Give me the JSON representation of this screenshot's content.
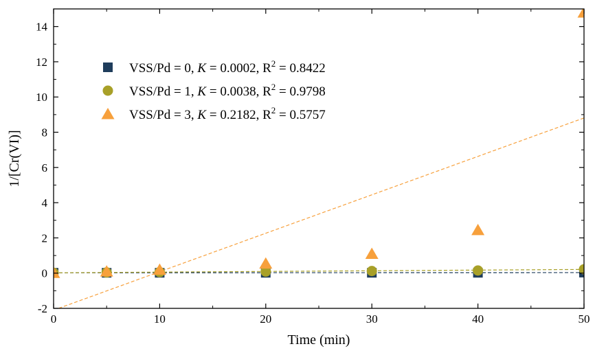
{
  "chart_data": {
    "type": "scatter",
    "xlabel": "Time (min)",
    "ylabel": "1/[Cr(VI)]",
    "xlim": [
      0,
      50
    ],
    "ylim": [
      -2,
      15
    ],
    "x_ticks": [
      "0",
      "10",
      "20",
      "30",
      "40",
      "50"
    ],
    "y_ticks": [
      "-2",
      "0",
      "2",
      "4",
      "6",
      "8",
      "10",
      "12",
      "14"
    ],
    "grid": false,
    "legend_position": "top-left",
    "series": [
      {
        "marker": "square",
        "color": "#1f3d5c",
        "legend": {
          "label": "VSS/Pd = 0, ",
          "k_symbol": "K",
          "k_value": " = 0.0002, R",
          "r2_exp": "2",
          "r2_value": " = 0.8422"
        },
        "x": [
          0,
          5,
          10,
          20,
          30,
          40,
          50
        ],
        "y": [
          0.02,
          0.02,
          0.02,
          0.02,
          0.02,
          0.02,
          0.03
        ],
        "fit": {
          "slope": 0.0002,
          "intercept": 0.02
        }
      },
      {
        "marker": "circle",
        "color": "#a8a028",
        "legend": {
          "label": "VSS/Pd = 1, ",
          "k_symbol": "K",
          "k_value": " = 0.0038, R",
          "r2_exp": "2",
          "r2_value": " = 0.9798"
        },
        "x": [
          0,
          5,
          10,
          20,
          30,
          40,
          50
        ],
        "y": [
          0.02,
          0.04,
          0.06,
          0.09,
          0.12,
          0.15,
          0.22
        ],
        "fit": {
          "slope": 0.0038,
          "intercept": 0.02
        }
      },
      {
        "marker": "triangle",
        "color": "#f7a03c",
        "legend": {
          "label": "VSS/Pd = 3, ",
          "k_symbol": "K",
          "k_value": " = 0.2182, R",
          "r2_exp": "2",
          "r2_value": " = 0.5757"
        },
        "x": [
          0,
          5,
          10,
          20,
          30,
          40,
          50
        ],
        "y": [
          0.02,
          0.1,
          0.2,
          0.55,
          1.1,
          2.45,
          14.8
        ],
        "fit": {
          "slope": 0.2182,
          "intercept": -2.1
        }
      }
    ]
  }
}
